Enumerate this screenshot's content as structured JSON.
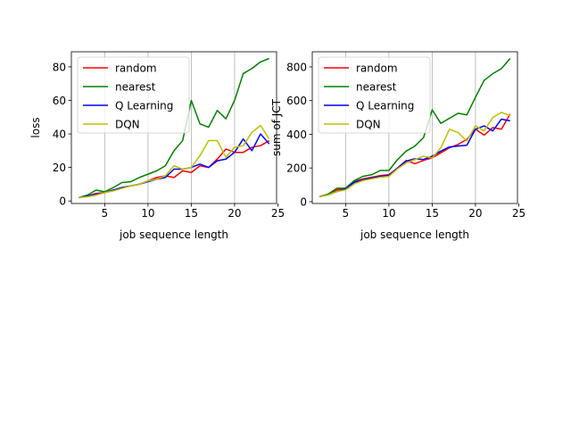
{
  "chart_data": [
    {
      "type": "line",
      "xlabel": "job sequence length",
      "ylabel": "loss",
      "xlim": [
        1.15,
        24.85
      ],
      "ylim": [
        -1.5,
        89
      ],
      "xticks": [
        5,
        10,
        15,
        20,
        25
      ],
      "yticks": [
        0,
        20,
        40,
        60,
        80
      ],
      "grid": "vertical lines at x ticks",
      "legend": "upper-left",
      "x": [
        2,
        3,
        4,
        5,
        6,
        7,
        8,
        9,
        10,
        11,
        12,
        13,
        14,
        15,
        16,
        17,
        18,
        19,
        20,
        21,
        22,
        23,
        24
      ],
      "series": [
        {
          "name": "random",
          "color": "#ff0000",
          "values": [
            2,
            3,
            4.5,
            5,
            6.5,
            8,
            9,
            10,
            12,
            14,
            15,
            14,
            18,
            17,
            21,
            20,
            25,
            31,
            29,
            29,
            32,
            33,
            36
          ]
        },
        {
          "name": "nearest",
          "color": "#008000",
          "values": [
            2,
            3.5,
            6.5,
            5.5,
            8,
            11,
            11.5,
            14,
            16,
            18,
            21,
            30,
            36,
            60,
            46,
            44,
            54,
            49,
            60,
            76,
            79,
            83,
            85
          ]
        },
        {
          "name": "Q Learning",
          "color": "#0000ff",
          "values": [
            2,
            3,
            4,
            5,
            6.5,
            8,
            9,
            10,
            11.5,
            13,
            14,
            19,
            19,
            20,
            22,
            20,
            24,
            25,
            29,
            37,
            30,
            40,
            34
          ]
        },
        {
          "name": "DQN",
          "color": "#bfbf00",
          "values": [
            2,
            2.5,
            3.5,
            5,
            6,
            7.5,
            9,
            10,
            12,
            13,
            15,
            21,
            19,
            20,
            27,
            36,
            36,
            26,
            32,
            33,
            41,
            45,
            37
          ]
        }
      ]
    },
    {
      "type": "line",
      "xlabel": "job sequence length",
      "ylabel": "sum of JCT",
      "xlim": [
        1.15,
        24.85
      ],
      "ylim": [
        -11,
        890
      ],
      "xticks": [
        5,
        10,
        15,
        20,
        25
      ],
      "yticks": [
        0,
        200,
        400,
        600,
        800
      ],
      "grid": "vertical lines at x ticks",
      "legend": "upper-left",
      "x": [
        2,
        3,
        4,
        5,
        6,
        7,
        8,
        9,
        10,
        11,
        12,
        13,
        14,
        15,
        16,
        17,
        18,
        19,
        20,
        21,
        22,
        23,
        24
      ],
      "series": [
        {
          "name": "random",
          "color": "#ff0000",
          "values": [
            30,
            45,
            70,
            80,
            120,
            135,
            145,
            155,
            160,
            200,
            245,
            225,
            245,
            260,
            290,
            320,
            340,
            370,
            430,
            395,
            440,
            430,
            520
          ]
        },
        {
          "name": "nearest",
          "color": "#008000",
          "values": [
            30,
            45,
            80,
            80,
            125,
            150,
            160,
            185,
            185,
            250,
            300,
            330,
            380,
            545,
            465,
            495,
            525,
            515,
            620,
            720,
            760,
            790,
            850
          ]
        },
        {
          "name": "Q Learning",
          "color": "#0000ff",
          "values": [
            30,
            40,
            60,
            75,
            115,
            130,
            140,
            150,
            155,
            200,
            240,
            255,
            250,
            270,
            300,
            325,
            330,
            335,
            430,
            450,
            420,
            490,
            480
          ]
        },
        {
          "name": "DQN",
          "color": "#bfbf00",
          "values": [
            30,
            40,
            60,
            70,
            105,
            125,
            135,
            145,
            150,
            195,
            230,
            250,
            270,
            260,
            320,
            430,
            410,
            360,
            450,
            420,
            500,
            530,
            510
          ]
        }
      ]
    }
  ]
}
